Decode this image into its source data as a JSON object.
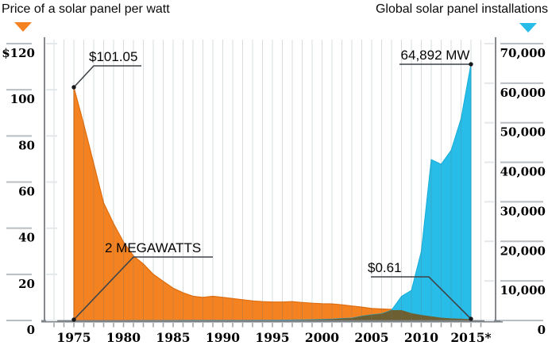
{
  "header": {
    "left_title": "Price of a solar panel per watt",
    "right_title": "Global solar panel installations"
  },
  "colors": {
    "price": "#f58220",
    "price_edge": "#e06d0e",
    "installations": "#27bde8",
    "installations_edge": "#15aed9",
    "overlap": "#6e5f33",
    "grid": "rgba(96,114,128,0.25)",
    "axis": "#85898d",
    "tick": "#b9bec2",
    "inner_tick": "#e4e8ea",
    "leader": "#3f4448",
    "dot": "#17191b"
  },
  "chart_data": {
    "type": "area",
    "title_left": "Price of a solar panel per watt",
    "title_right": "Global solar panel installations",
    "grid": "vertical-yearly",
    "x": [
      1975,
      1976,
      1977,
      1978,
      1979,
      1980,
      1981,
      1982,
      1983,
      1984,
      1985,
      1986,
      1987,
      1988,
      1989,
      1990,
      1991,
      1992,
      1993,
      1994,
      1995,
      1996,
      1997,
      1998,
      1999,
      2000,
      2001,
      2002,
      2003,
      2004,
      2005,
      2006,
      2007,
      2008,
      2009,
      2010,
      2011,
      2012,
      2013,
      2014,
      2015
    ],
    "series": [
      {
        "name": "Price of a solar panel per watt",
        "unit": "USD per watt",
        "axis": "left",
        "color": "#f58220",
        "values": [
          101.05,
          85,
          68,
          51,
          42,
          34,
          28,
          24.5,
          20,
          17,
          14,
          12,
          10.5,
          10,
          10.5,
          10,
          9.5,
          9,
          8.5,
          8.2,
          8,
          8,
          8.2,
          7.8,
          7.5,
          7.3,
          7.2,
          6.8,
          6.3,
          5.8,
          5.2,
          5,
          4.8,
          4.5,
          3.2,
          2.4,
          1.8,
          1.2,
          0.9,
          0.75,
          0.61
        ]
      },
      {
        "name": "Global solar panel installations",
        "unit": "MW",
        "axis": "right",
        "color": "#27bde8",
        "values": [
          2,
          3,
          4,
          5,
          7,
          10,
          13,
          17,
          21,
          25,
          30,
          35,
          40,
          45,
          50,
          55,
          60,
          65,
          70,
          80,
          90,
          100,
          130,
          160,
          200,
          290,
          350,
          500,
          600,
          1100,
          1450,
          1700,
          2600,
          6100,
          7600,
          17500,
          40700,
          39500,
          43000,
          51000,
          64892
        ]
      }
    ],
    "left_axis": {
      "min": 0,
      "max": 120,
      "tick_labels": [
        "$120",
        "100",
        "80",
        "60",
        "40",
        "20",
        "0"
      ],
      "tick_values": [
        120,
        100,
        80,
        60,
        40,
        20,
        0
      ]
    },
    "right_axis": {
      "min": 0,
      "max": 70000,
      "tick_labels": [
        "70,000",
        "60,000",
        "50,000",
        "40,000",
        "30,000",
        "20,000",
        "10,000",
        "0"
      ],
      "tick_values": [
        70000,
        60000,
        50000,
        40000,
        30000,
        20000,
        10000,
        0
      ]
    },
    "x_axis": {
      "tick_labels": [
        "1975",
        "1980",
        "1985",
        "1990",
        "1995",
        "2000",
        "2005",
        "2010",
        "2015*"
      ],
      "tick_years": [
        1975,
        1980,
        1985,
        1990,
        1995,
        2000,
        2005,
        2010,
        2015
      ],
      "minor_tick_year_start": 1973,
      "minor_tick_year_end": 2016
    },
    "annotations": [
      {
        "text": "$101.05",
        "series": "price",
        "year": 1975,
        "value": 101.05
      },
      {
        "text": "2 MEGAWATTS",
        "series": "installations",
        "year": 1975,
        "value": 2
      },
      {
        "text": "$0.61",
        "series": "price",
        "year": 2015,
        "value": 0.61
      },
      {
        "text": "64,892 MW",
        "series": "installations",
        "year": 2015,
        "value": 64892
      }
    ]
  }
}
